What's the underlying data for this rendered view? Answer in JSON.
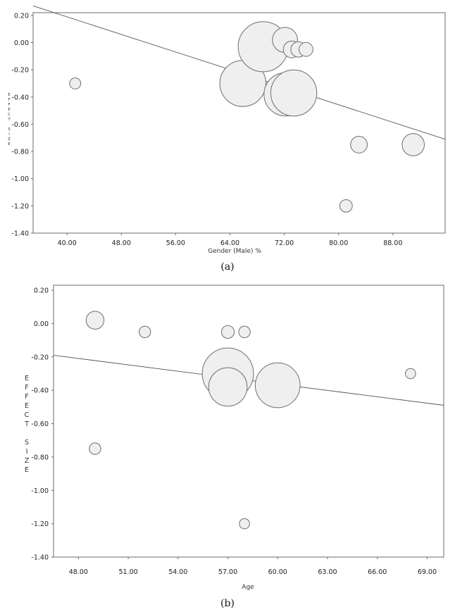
{
  "colors": {
    "bubble_fill": "#efefef",
    "bubble_stroke": "#6e6e6e",
    "line": "#555555",
    "frame": "#6b6b6b"
  },
  "chart_data": [
    {
      "type": "scatter",
      "subtype": "meta-regression bubble plot",
      "caption": "(a)",
      "xlabel": "Gender (Male) %",
      "ylabel": "EFFECT SIZE",
      "ylabel_letters": [
        "E",
        "F",
        "F",
        "E",
        "C",
        "T",
        "",
        "S",
        "I",
        "Z",
        "E"
      ],
      "xlim": [
        35.0,
        95.7
      ],
      "ylim": [
        -1.4,
        0.22
      ],
      "xticks": [
        40,
        48,
        56,
        64,
        72,
        80,
        88
      ],
      "xtick_labels": [
        "40.00",
        "48.00",
        "56.00",
        "64.00",
        "72.00",
        "80.00",
        "88.00"
      ],
      "yticks": [
        0.2,
        0,
        -0.2,
        -0.4,
        -0.6,
        -0.8,
        -1.0,
        -1.2,
        -1.4
      ],
      "ytick_labels": [
        "0.20",
        "0.00",
        "-0.20",
        "-0.40",
        "-0.60",
        "-0.80",
        "-1.00",
        "-1.20",
        "-1.40"
      ],
      "regression": {
        "x": [
          35.0,
          95.7
        ],
        "y": [
          0.27,
          -0.71
        ]
      },
      "points": [
        {
          "x": 41.2,
          "y": -0.3,
          "size": 0.8
        },
        {
          "x": 65.9,
          "y": -0.3,
          "size": 3.3
        },
        {
          "x": 68.9,
          "y": -0.03,
          "size": 3.6
        },
        {
          "x": 72.1,
          "y": 0.02,
          "size": 1.8
        },
        {
          "x": 73.1,
          "y": -0.05,
          "size": 1.2
        },
        {
          "x": 74.1,
          "y": -0.05,
          "size": 1.1
        },
        {
          "x": 75.2,
          "y": -0.05,
          "size": 1.0
        },
        {
          "x": 72.2,
          "y": -0.38,
          "size": 3.1
        },
        {
          "x": 73.4,
          "y": -0.37,
          "size": 3.3
        },
        {
          "x": 81.1,
          "y": -1.2,
          "size": 0.9
        },
        {
          "x": 83.0,
          "y": -0.75,
          "size": 1.2
        },
        {
          "x": 91.0,
          "y": -0.75,
          "size": 1.6
        }
      ]
    },
    {
      "type": "scatter",
      "subtype": "meta-regression bubble plot",
      "caption": "(b)",
      "xlabel": "Age",
      "ylabel": "EFFECT SIZE",
      "ylabel_letters": [
        "E",
        "F",
        "F",
        "E",
        "C",
        "T",
        "",
        "S",
        "I",
        "Z",
        "E"
      ],
      "xlim": [
        46.5,
        70.0
      ],
      "ylim": [
        -1.4,
        0.23
      ],
      "xticks": [
        48,
        51,
        54,
        57,
        60,
        63,
        66,
        69
      ],
      "xtick_labels": [
        "48.00",
        "51.00",
        "54.00",
        "57.00",
        "60.00",
        "63.00",
        "66.00",
        "69.00"
      ],
      "yticks": [
        0.2,
        0,
        -0.2,
        -0.4,
        -0.6,
        -0.8,
        -1.0,
        -1.2,
        -1.4
      ],
      "ytick_labels": [
        "0.20",
        "0.00",
        "-0.20",
        "-0.40",
        "-0.60",
        "-0.80",
        "-1.00",
        "-1.20",
        "-1.40"
      ],
      "regression": {
        "x": [
          46.5,
          70.0
        ],
        "y": [
          -0.19,
          -0.49
        ]
      },
      "points": [
        {
          "x": 49.0,
          "y": 0.02,
          "size": 1.4
        },
        {
          "x": 52.0,
          "y": -0.05,
          "size": 0.9
        },
        {
          "x": 57.0,
          "y": -0.05,
          "size": 1.0
        },
        {
          "x": 58.0,
          "y": -0.05,
          "size": 0.9
        },
        {
          "x": 57.0,
          "y": -0.3,
          "size": 4.0
        },
        {
          "x": 57.0,
          "y": -0.38,
          "size": 3.0
        },
        {
          "x": 60.0,
          "y": -0.37,
          "size": 3.5
        },
        {
          "x": 68.0,
          "y": -0.3,
          "size": 0.8
        },
        {
          "x": 49.0,
          "y": -0.75,
          "size": 0.9
        },
        {
          "x": 58.0,
          "y": -1.2,
          "size": 0.8
        }
      ]
    }
  ]
}
